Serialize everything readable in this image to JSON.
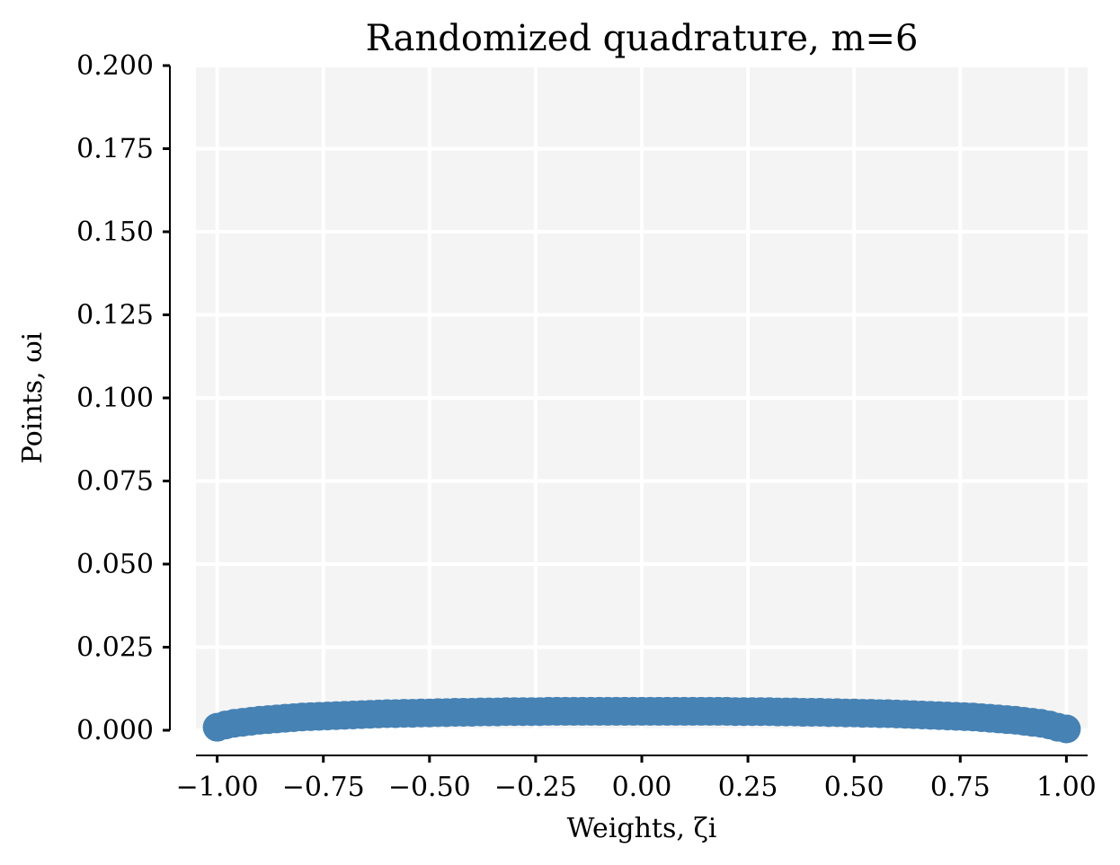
{
  "chart_data": {
    "type": "scatter",
    "title": "Randomized quadrature, m=6",
    "xlabel": "Weights, ζi",
    "ylabel": "Points, ωi",
    "xlim": [
      -1.05,
      1.05
    ],
    "ylim": [
      0.0,
      0.2
    ],
    "x_ticks": [
      "−1.00",
      "−0.75",
      "−0.50",
      "−0.25",
      "0.00",
      "0.25",
      "0.50",
      "0.75",
      "1.00"
    ],
    "x_tick_values": [
      -1.0,
      -0.75,
      -0.5,
      -0.25,
      0.0,
      0.25,
      0.5,
      0.75,
      1.0
    ],
    "y_ticks": [
      "0.000",
      "0.025",
      "0.050",
      "0.075",
      "0.100",
      "0.125",
      "0.150",
      "0.175",
      "0.200"
    ],
    "y_tick_values": [
      0.0,
      0.025,
      0.05,
      0.075,
      0.1,
      0.125,
      0.15,
      0.175,
      0.2
    ],
    "grid": true,
    "background": "#f4f4f4",
    "grid_color": "#ffffff",
    "marker_color": "#4682b4",
    "series": [
      {
        "x": [
          -1.0,
          -0.98,
          -0.96,
          -0.94,
          -0.92,
          -0.9,
          -0.88,
          -0.86,
          -0.84,
          -0.82,
          -0.8,
          -0.78,
          -0.76,
          -0.74,
          -0.72,
          -0.7,
          -0.68,
          -0.66,
          -0.64,
          -0.62,
          -0.6,
          -0.58,
          -0.56,
          -0.54,
          -0.52,
          -0.5,
          -0.48,
          -0.46,
          -0.44,
          -0.42,
          -0.4,
          -0.38,
          -0.36,
          -0.34,
          -0.32,
          -0.3,
          -0.28,
          -0.26,
          -0.24,
          -0.22,
          -0.2,
          -0.18,
          -0.16,
          -0.14,
          -0.12,
          -0.1,
          -0.08,
          -0.06,
          -0.04,
          -0.02,
          0.0,
          0.02,
          0.04,
          0.06,
          0.08,
          0.1,
          0.12,
          0.14,
          0.16,
          0.18,
          0.2,
          0.22,
          0.24,
          0.26,
          0.28,
          0.3,
          0.32,
          0.34,
          0.36,
          0.38,
          0.4,
          0.42,
          0.44,
          0.46,
          0.48,
          0.5,
          0.52,
          0.54,
          0.56,
          0.58,
          0.6,
          0.62,
          0.64,
          0.66,
          0.68,
          0.7,
          0.72,
          0.74,
          0.76,
          0.78,
          0.8,
          0.82,
          0.84,
          0.86,
          0.88,
          0.9,
          0.92,
          0.94,
          0.96,
          0.98,
          1.0
        ],
        "y": [
          0.0009,
          0.0016,
          0.0021,
          0.0024,
          0.0027,
          0.003,
          0.0032,
          0.0034,
          0.0036,
          0.0038,
          0.004,
          0.0041,
          0.0042,
          0.0043,
          0.0044,
          0.0045,
          0.0046,
          0.0047,
          0.0048,
          0.0049,
          0.005,
          0.005,
          0.0051,
          0.0051,
          0.0052,
          0.0052,
          0.0053,
          0.0053,
          0.0054,
          0.0054,
          0.0054,
          0.0055,
          0.0055,
          0.0055,
          0.0056,
          0.0056,
          0.0056,
          0.0056,
          0.0056,
          0.0057,
          0.0057,
          0.0057,
          0.0057,
          0.0057,
          0.0057,
          0.0057,
          0.0057,
          0.0057,
          0.0057,
          0.0057,
          0.0057,
          0.0057,
          0.0057,
          0.0057,
          0.0057,
          0.0057,
          0.0057,
          0.0057,
          0.0057,
          0.0057,
          0.0057,
          0.0056,
          0.0056,
          0.0056,
          0.0056,
          0.0056,
          0.0055,
          0.0055,
          0.0055,
          0.0054,
          0.0054,
          0.0054,
          0.0053,
          0.0053,
          0.0052,
          0.0052,
          0.0051,
          0.0051,
          0.005,
          0.005,
          0.0049,
          0.0048,
          0.0047,
          0.0046,
          0.0045,
          0.0044,
          0.0043,
          0.0042,
          0.0041,
          0.004,
          0.0038,
          0.0036,
          0.0034,
          0.0032,
          0.003,
          0.0027,
          0.0024,
          0.0021,
          0.0016,
          0.0009,
          0.0004
        ]
      }
    ]
  }
}
